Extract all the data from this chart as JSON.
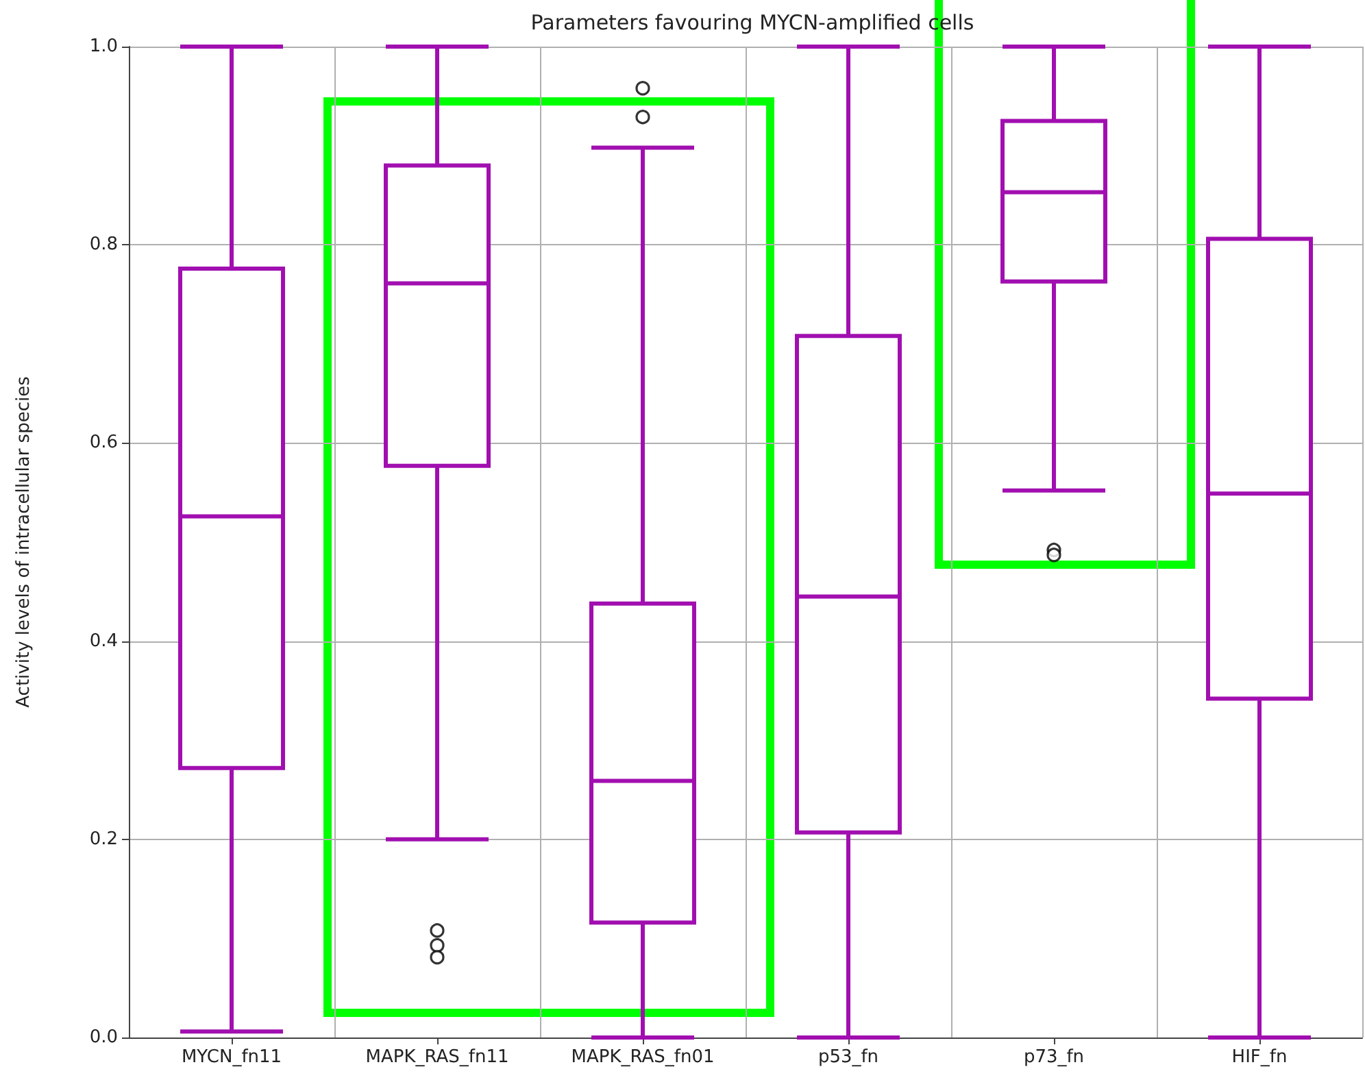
{
  "chart_data": {
    "type": "box",
    "title": "Parameters favouring MYCN-amplified cells",
    "ylabel": "Activity levels of intracellular species",
    "categories": [
      "MYCN_fn11",
      "MAPK_RAS_fn11",
      "MAPK_RAS_fn01",
      "p53_fn",
      "p73_fn",
      "HIF_fn"
    ],
    "color": "#a10fb0",
    "boxes": [
      {
        "low": 0.006,
        "q1": 0.272,
        "median": 0.526,
        "q3": 0.776,
        "high": 1.0
      },
      {
        "low": 0.2,
        "q1": 0.577,
        "median": 0.761,
        "q3": 0.88,
        "high": 1.0,
        "outliers": [
          0.108,
          0.093,
          0.081
        ]
      },
      {
        "low": 0.0,
        "q1": 0.116,
        "median": 0.259,
        "q3": 0.438,
        "high": 0.898,
        "outliers": [
          0.958,
          0.929
        ]
      },
      {
        "low": 0.0,
        "q1": 0.207,
        "median": 0.445,
        "q3": 0.708,
        "high": 1.0
      },
      {
        "low": 0.552,
        "q1": 0.763,
        "median": 0.853,
        "q3": 0.925,
        "high": 1.0,
        "outliers": [
          0.492,
          0.487
        ]
      },
      {
        "low": 0.0,
        "q1": 0.342,
        "median": 0.549,
        "q3": 0.806,
        "high": 1.0
      }
    ],
    "ylim": [
      0,
      1
    ],
    "yticks": [
      {
        "value": 0,
        "label": "0.0"
      },
      0.2,
      0.4,
      0.6,
      0.8,
      {
        "value": 1,
        "label": "1.0"
      }
    ],
    "grid": true,
    "marker": "circle"
  }
}
